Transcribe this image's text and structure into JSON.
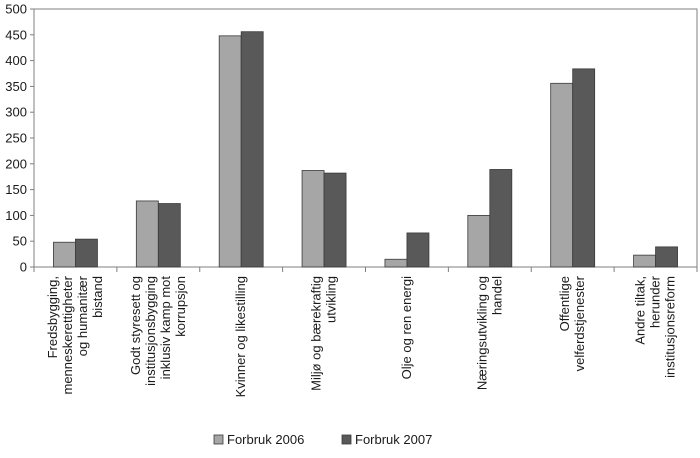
{
  "chart_data": {
    "type": "bar",
    "title": "",
    "xlabel": "",
    "ylabel": "",
    "ylim": [
      0,
      500
    ],
    "yticks": [
      "0",
      "50",
      "100",
      "150",
      "200",
      "250",
      "300",
      "350",
      "400",
      "450",
      "500"
    ],
    "grid": false,
    "legend_position": "bottom",
    "categories": [
      [
        "Fredsbygging,",
        "menneskerettigheter",
        "og humanitær",
        "bistand"
      ],
      [
        "Godt styresett og",
        "institusjonsbygging",
        "inklusiv kamp mot",
        "korrupsjon"
      ],
      [
        "Kvinner og likestilling"
      ],
      [
        "Miljø og bærekraftig",
        "utvikling"
      ],
      [
        "Olje og ren energi"
      ],
      [
        "Næringsutvikling og",
        "handel"
      ],
      [
        "Offentlige",
        "velferdstjenester"
      ],
      [
        "Andre tiltak,",
        "herunder",
        "institusjonsreform"
      ]
    ],
    "series": [
      {
        "name": "Forbruk 2006",
        "color": "#a6a6a6",
        "values": [
          48,
          128,
          448,
          187,
          15,
          100,
          356,
          23
        ]
      },
      {
        "name": "Forbruk 2007",
        "color": "#595959",
        "values": [
          54,
          123,
          456,
          182,
          66,
          189,
          384,
          39
        ]
      }
    ]
  }
}
